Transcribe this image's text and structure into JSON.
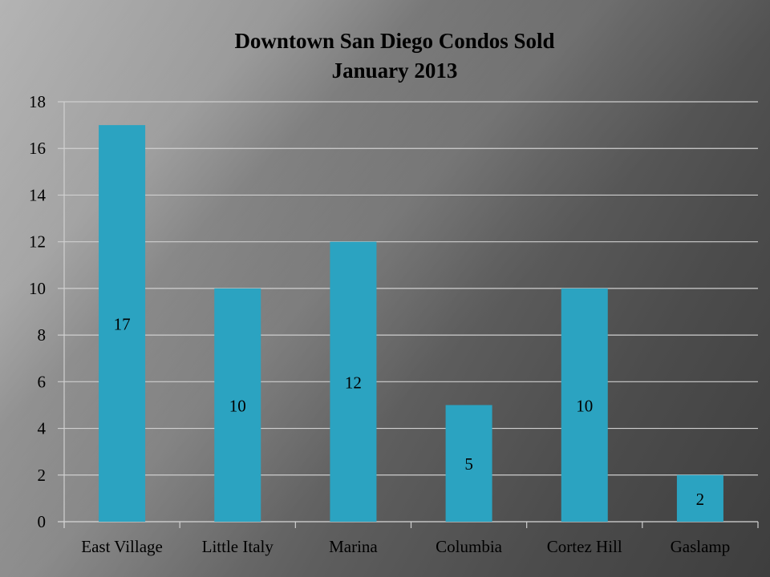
{
  "chart_data": {
    "type": "bar",
    "title": "Downtown San Diego Condos Sold",
    "subtitle": "January 2013",
    "xlabel": "",
    "ylabel": "",
    "categories": [
      "East Village",
      "Little Italy",
      "Marina",
      "Columbia",
      "Cortez Hill",
      "Gaslamp"
    ],
    "values": [
      17,
      10,
      12,
      5,
      10,
      2
    ],
    "ylim": [
      0,
      18
    ],
    "yticks": [
      0,
      2,
      4,
      6,
      8,
      10,
      12,
      14,
      16,
      18
    ],
    "grid": true,
    "legend": "none",
    "bar_color": "#2ba3c1"
  }
}
